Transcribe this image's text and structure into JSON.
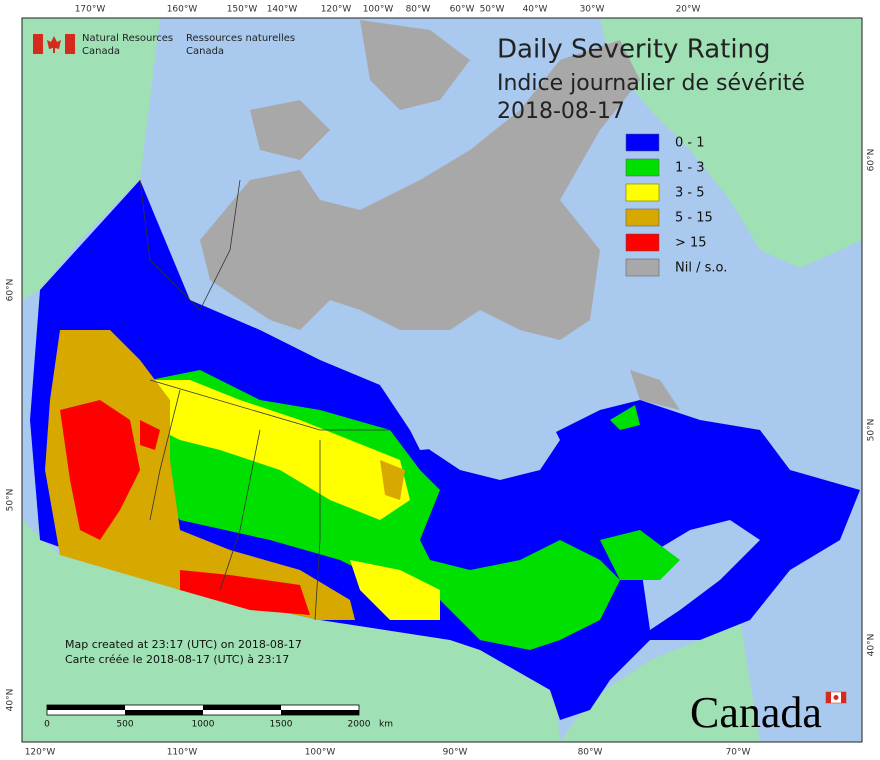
{
  "agency": {
    "en_line1": "Natural Resources",
    "en_line2": "Canada",
    "fr_line1": "Ressources naturelles",
    "fr_line2": "Canada"
  },
  "title": {
    "line1": "Daily Severity Rating",
    "line2": "Indice journalier de sévérité",
    "date": "2018-08-17"
  },
  "legend": [
    {
      "label": "0 - 1",
      "color": "#0000ff"
    },
    {
      "label": "1 - 3",
      "color": "#00e000"
    },
    {
      "label": "3 - 5",
      "color": "#ffff00"
    },
    {
      "label": "5 - 15",
      "color": "#d7a800"
    },
    {
      "label": "> 15",
      "color": "#ff0000"
    },
    {
      "label": "Nil / s.o.",
      "color": "#a8a8a8"
    }
  ],
  "graticule": {
    "top": [
      "170°W",
      "160°W",
      "150°W",
      "140°W",
      "120°W",
      "100°W",
      "80°W",
      "60°W",
      "50°W",
      "40°W",
      "30°W",
      "20°W"
    ],
    "bottom": [
      "120°W",
      "110°W",
      "100°W",
      "90°W",
      "80°W",
      "70°W"
    ],
    "left": [
      "60°N",
      "50°N",
      "40°N"
    ],
    "right": [
      "60°N",
      "50°N",
      "40°N"
    ]
  },
  "notes": [
    "Map created at 23:17 (UTC) on 2018-08-17",
    "Carte créée le 2018-08-17 (UTC) à 23:17"
  ],
  "scale_bar": {
    "labels": [
      "0",
      "500",
      "1000",
      "1500",
      "2000"
    ],
    "unit": "km"
  },
  "wordmark": "Canada"
}
